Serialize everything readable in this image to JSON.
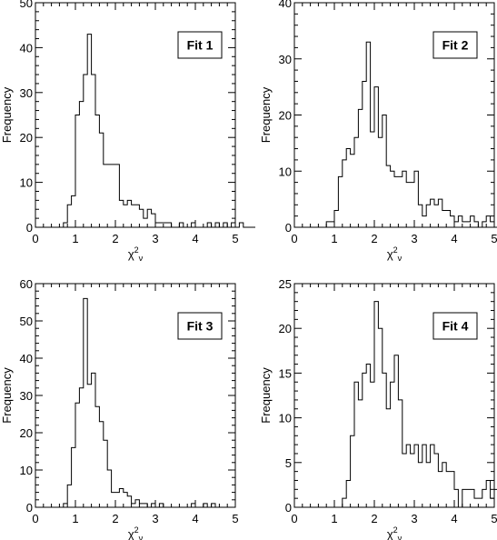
{
  "chart_data": [
    {
      "type": "bar",
      "style": "step-histogram",
      "label": "Fit 1",
      "xlabel": "χ²ν",
      "ylabel": "Frequency",
      "xlim": [
        0,
        5
      ],
      "ylim": [
        0,
        50
      ],
      "xticks": [
        0,
        1,
        2,
        3,
        4,
        5
      ],
      "yticks": [
        0,
        10,
        20,
        30,
        40,
        50
      ],
      "bin_width": 0.1,
      "bin_start": 0.6,
      "values": [
        0,
        1,
        5,
        7,
        25,
        28,
        34,
        43,
        34,
        25,
        21,
        14,
        14,
        14,
        14,
        6,
        5,
        6,
        5,
        5,
        4,
        2,
        4,
        3,
        1,
        1,
        1,
        1,
        0,
        0,
        1,
        0,
        0,
        1,
        0,
        0,
        0,
        1,
        0,
        1,
        0,
        1,
        0,
        1,
        0,
        1,
        0,
        0,
        0
      ]
    },
    {
      "type": "bar",
      "style": "step-histogram",
      "label": "Fit 2",
      "xlabel": "χ²ν",
      "ylabel": "Frequency",
      "xlim": [
        0,
        5
      ],
      "ylim": [
        0,
        40
      ],
      "xticks": [
        0,
        1,
        2,
        3,
        4,
        5
      ],
      "yticks": [
        0,
        10,
        20,
        30,
        40
      ],
      "bin_width": 0.1,
      "bin_start": 0.7,
      "values": [
        0,
        1,
        1,
        3,
        9,
        12,
        14,
        13,
        16,
        21,
        26,
        33,
        17,
        25,
        16,
        20,
        11,
        10,
        9,
        9,
        10,
        8,
        8,
        10,
        4,
        2,
        4,
        5,
        4,
        5,
        3,
        3,
        2,
        1,
        2,
        1,
        1,
        2,
        1,
        0,
        1,
        2,
        1,
        0,
        1,
        1,
        2,
        0,
        1,
        0
      ]
    },
    {
      "type": "bar",
      "style": "step-histogram",
      "label": "Fit 3",
      "xlabel": "χ²ν",
      "ylabel": "Frequency",
      "xlim": [
        0,
        5
      ],
      "ylim": [
        0,
        60
      ],
      "xticks": [
        0,
        1,
        2,
        3,
        4,
        5
      ],
      "yticks": [
        0,
        10,
        20,
        30,
        40,
        50,
        60
      ],
      "bin_width": 0.1,
      "bin_start": 0.6,
      "values": [
        0,
        1,
        6,
        16,
        28,
        32,
        56,
        33,
        36,
        27,
        23,
        18,
        10,
        4,
        4,
        5,
        4,
        3,
        1,
        2,
        1,
        1,
        0,
        1,
        0,
        1,
        0,
        0,
        0,
        0,
        0,
        0,
        0,
        1,
        0,
        0,
        1,
        0,
        1,
        0,
        0,
        0,
        0,
        0
      ]
    },
    {
      "type": "bar",
      "style": "step-histogram",
      "label": "Fit 4",
      "xlabel": "χ²ν",
      "ylabel": "Frequency",
      "xlim": [
        0,
        5
      ],
      "ylim": [
        0,
        25
      ],
      "xticks": [
        0,
        1,
        2,
        3,
        4,
        5
      ],
      "yticks": [
        0,
        5,
        10,
        15,
        20,
        25
      ],
      "bin_width": 0.1,
      "bin_start": 1.1,
      "values": [
        0,
        1,
        3,
        8,
        14,
        12,
        15,
        16,
        14,
        23,
        20,
        15,
        11,
        14,
        17,
        12,
        6,
        7,
        6,
        7,
        5,
        7,
        5,
        7,
        6,
        4,
        5,
        4,
        4,
        2,
        0,
        2,
        2,
        2,
        1,
        1,
        2,
        3,
        1,
        2,
        1,
        3,
        4,
        2,
        1,
        0
      ]
    }
  ]
}
